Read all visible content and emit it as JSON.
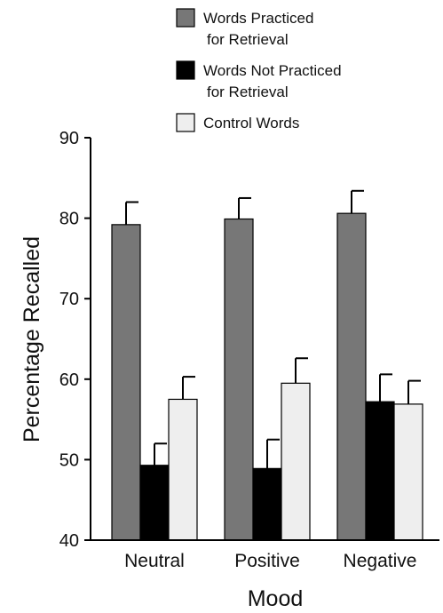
{
  "chart_data": {
    "type": "bar",
    "categories": [
      "Neutral",
      "Positive",
      "Negative"
    ],
    "series": [
      {
        "name": "Words Practiced for Retrieval",
        "name_lines": [
          "Words Practiced",
          "for Retrieval"
        ],
        "color": "#777777",
        "values": [
          79.2,
          79.9,
          80.6
        ],
        "errors": [
          2.8,
          2.6,
          2.8
        ]
      },
      {
        "name": "Words Not Practiced for Retrieval",
        "name_lines": [
          "Words Not Practiced",
          "for Retrieval"
        ],
        "color": "#000000",
        "values": [
          49.3,
          48.9,
          57.2
        ],
        "errors": [
          2.7,
          3.6,
          3.4
        ]
      },
      {
        "name": "Control Words",
        "name_lines": [
          "Control Words"
        ],
        "color": "#eeeeee",
        "values": [
          57.5,
          59.5,
          56.9
        ],
        "errors": [
          2.8,
          3.1,
          2.9
        ]
      }
    ],
    "xlabel": "Mood",
    "ylabel": "Percentage Recalled",
    "ylim": [
      40,
      90
    ],
    "yticks": [
      "40",
      "50",
      "60",
      "70",
      "80",
      "90"
    ],
    "grid": false,
    "legend_position": "top-center"
  }
}
